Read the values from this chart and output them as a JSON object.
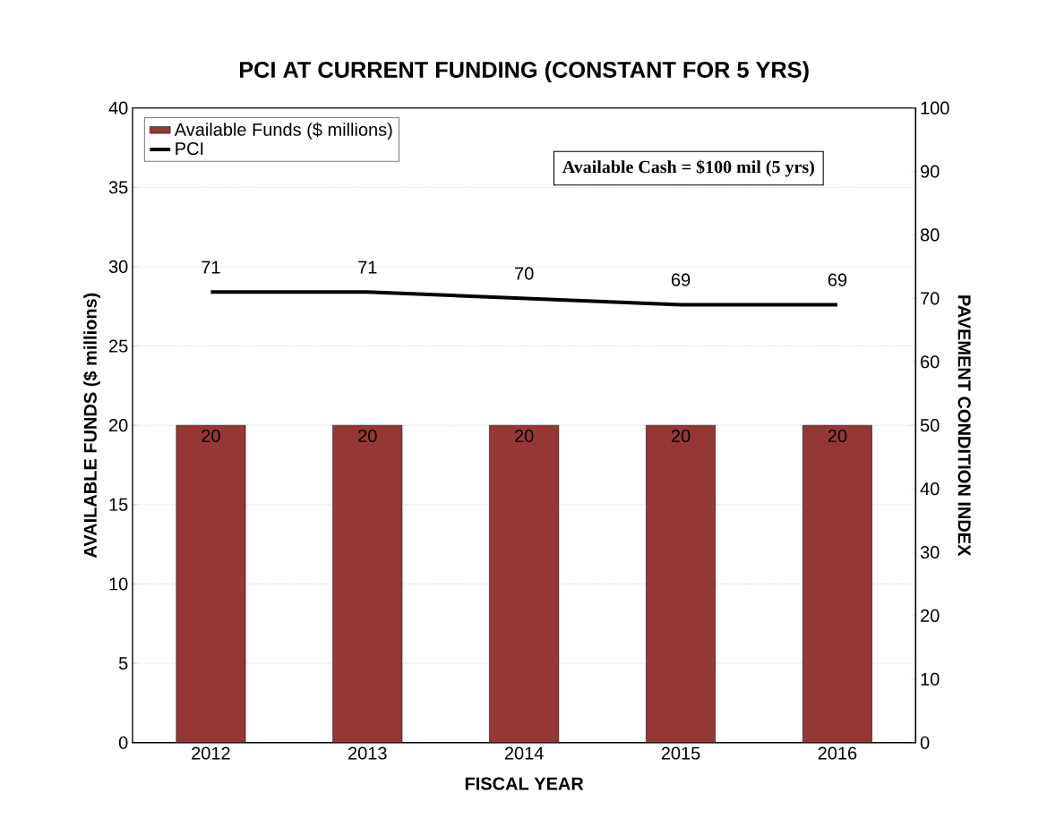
{
  "chart_data": {
    "type": "bar",
    "title": "PCI AT CURRENT FUNDING (CONSTANT FOR 5 YRS)",
    "xlabel": "FISCAL YEAR",
    "ylabel": "AVAILABLE FUNDS ($ millions)",
    "y2label": "PAVEMENT CONDITION INDEX",
    "categories": [
      "2012",
      "2013",
      "2014",
      "2015",
      "2016"
    ],
    "series": [
      {
        "name": "Available Funds ($ millions)",
        "color": "#953735",
        "values": [
          20,
          20,
          20,
          20,
          20
        ]
      },
      {
        "name": "PCI",
        "type": "line",
        "axis": "y2",
        "color": "#000000",
        "values": [
          71,
          71,
          70,
          69,
          69
        ]
      }
    ],
    "ylim": [
      0,
      40
    ],
    "yticks": [
      0,
      5,
      10,
      15,
      20,
      25,
      30,
      35,
      40
    ],
    "y2lim": [
      0,
      100
    ],
    "y2ticks": [
      0,
      10,
      20,
      30,
      40,
      50,
      60,
      70,
      80,
      90,
      100
    ],
    "grid": "y",
    "legend": "top left",
    "data_labels": true,
    "annotations": [
      "Available Cash = $100 mil (5 yrs)"
    ]
  }
}
